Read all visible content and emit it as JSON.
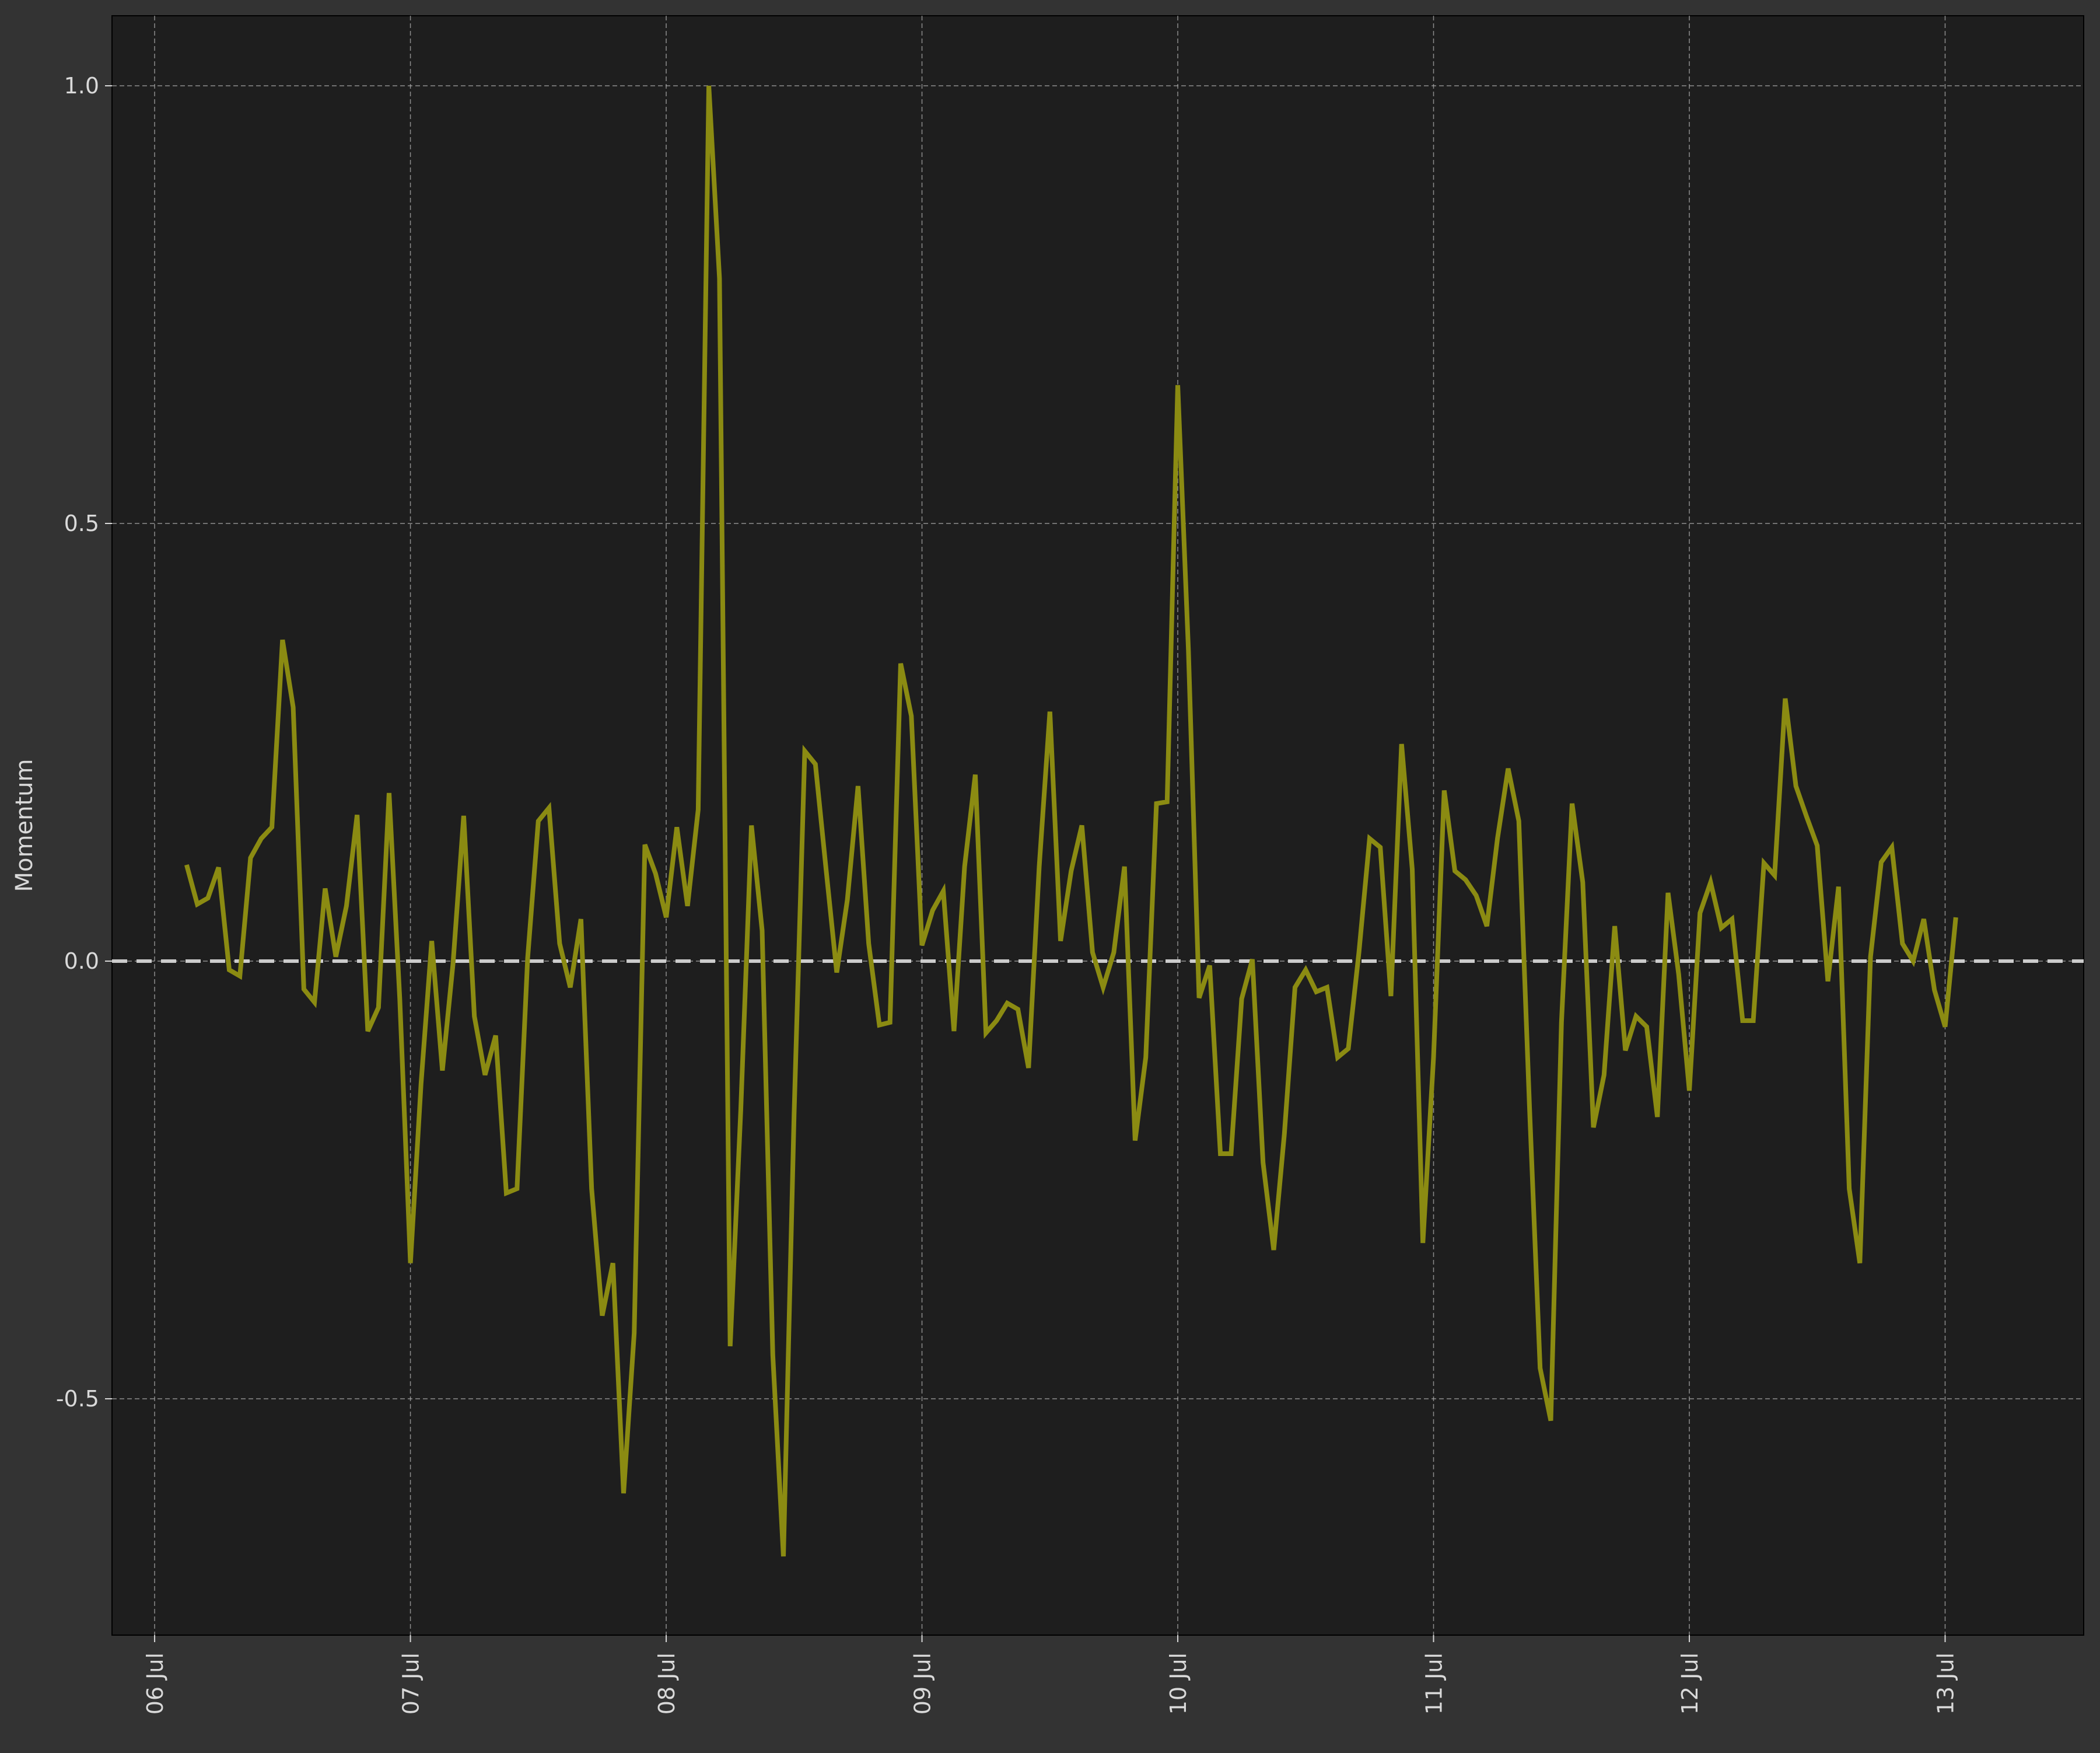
{
  "figure": {
    "background": "#333333",
    "plot_background": "#1e1e1e",
    "grid_color": "#b3b3b3",
    "text_color": "#d9d9d9"
  },
  "chart_data": {
    "type": "line",
    "title": "",
    "xlabel": "",
    "ylabel": "Momentum",
    "xlim": [
      "2023-07-05 20:00",
      "2023-07-13 13:00"
    ],
    "ylim": [
      -0.77,
      1.08
    ],
    "grid": true,
    "x_tick_labels": [
      "06 Jul",
      "07 Jul",
      "08 Jul",
      "09 Jul",
      "10 Jul",
      "11 Jul",
      "12 Jul",
      "13 Jul"
    ],
    "y_tick_labels": [
      "-0.5",
      "0.0",
      "0.5",
      "1.0"
    ],
    "y_ticks": [
      -0.5,
      0.0,
      0.5,
      1.0
    ],
    "start": "2023-07-06 03:00",
    "interval_hours": 1,
    "reference_line": {
      "y": 0.0,
      "style": "dashed",
      "color": "#cccccc"
    },
    "series": [
      {
        "color": "#8b8b12",
        "values": [
          0.11,
          0.065,
          0.072,
          0.107,
          -0.01,
          -0.017,
          0.118,
          0.14,
          0.153,
          0.367,
          0.29,
          -0.032,
          -0.047,
          0.083,
          0.005,
          0.063,
          0.167,
          -0.08,
          -0.053,
          0.192,
          -0.043,
          -0.345,
          -0.14,
          0.023,
          -0.125,
          -0.003,
          0.166,
          -0.063,
          -0.13,
          -0.085,
          -0.265,
          -0.26,
          0.003,
          0.16,
          0.175,
          0.02,
          -0.03,
          0.048,
          -0.26,
          -0.405,
          -0.345,
          -0.608,
          -0.425,
          0.133,
          0.1,
          0.05,
          0.153,
          0.063,
          0.173,
          1.0,
          0.78,
          -0.44,
          -0.17,
          0.155,
          0.035,
          -0.45,
          -0.68,
          -0.175,
          0.24,
          0.225,
          0.105,
          -0.013,
          0.07,
          0.2,
          0.02,
          -0.073,
          -0.07,
          0.34,
          0.28,
          0.018,
          0.058,
          0.08,
          -0.08,
          0.108,
          0.213,
          -0.082,
          -0.068,
          -0.048,
          -0.055,
          -0.122,
          0.108,
          0.285,
          0.023,
          0.103,
          0.155,
          0.01,
          -0.03,
          0.01,
          0.108,
          -0.205,
          -0.11,
          0.18,
          0.182,
          0.658,
          0.355,
          -0.042,
          -0.005,
          -0.22,
          -0.22,
          -0.043,
          0.002,
          -0.23,
          -0.33,
          -0.198,
          -0.03,
          -0.01,
          -0.035,
          -0.03,
          -0.11,
          -0.1,
          0.01,
          0.14,
          0.13,
          -0.04,
          0.248,
          0.105,
          -0.322,
          -0.11,
          0.195,
          0.103,
          0.093,
          0.075,
          0.04,
          0.14,
          0.22,
          0.16,
          -0.165,
          -0.465,
          -0.525,
          -0.07,
          0.18,
          0.09,
          -0.19,
          -0.13,
          0.04,
          -0.102,
          -0.063,
          -0.075,
          -0.178,
          0.078,
          -0.015,
          -0.148,
          0.055,
          0.09,
          0.038,
          0.048,
          -0.068,
          -0.068,
          0.112,
          0.098,
          0.3,
          0.2,
          0.165,
          0.132,
          -0.023,
          0.085,
          -0.26,
          -0.345,
          0.005,
          0.113,
          0.13,
          0.02,
          0.0,
          0.048,
          -0.033,
          -0.075,
          0.05
        ]
      }
    ]
  }
}
